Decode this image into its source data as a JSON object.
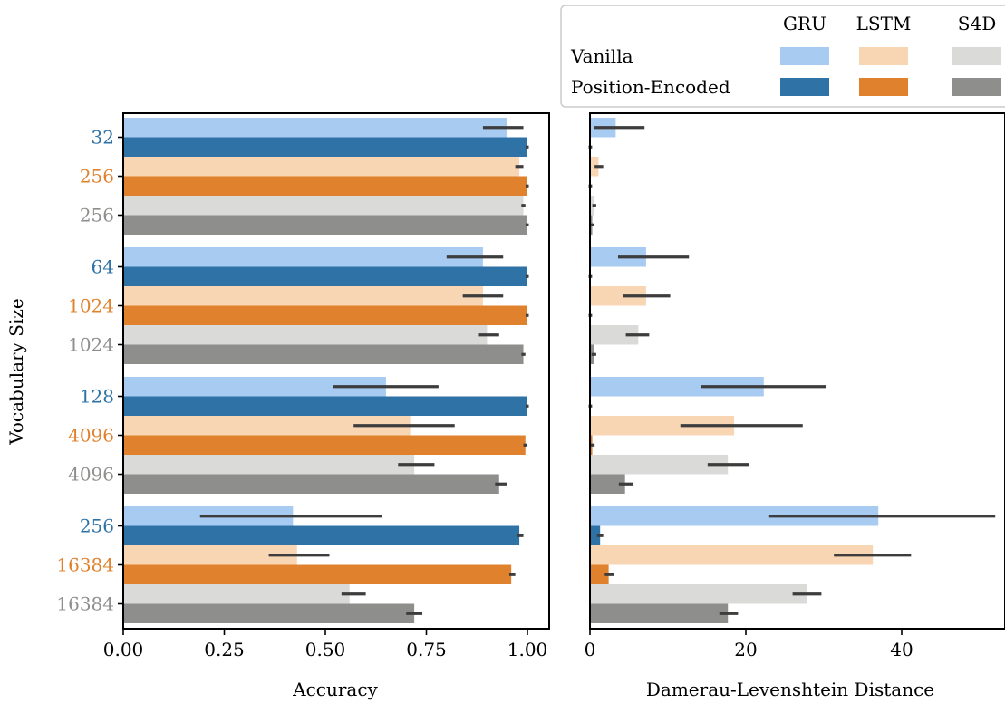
{
  "chart_data": [
    {
      "type": "bar",
      "orientation": "horizontal",
      "xlabel": "Accuracy",
      "ylabel": "Vocabulary Size",
      "xlim": [
        0,
        1.05
      ],
      "xticks": [
        "0.00",
        "0.25",
        "0.50",
        "0.75",
        "1.00"
      ],
      "tick_values": [
        0,
        0.25,
        0.5,
        0.75,
        1.0
      ],
      "bars": [
        {
          "group": 0,
          "row": 0,
          "label": "32",
          "model": "GRU",
          "variant": "Vanilla",
          "value": 0.95,
          "err": [
            0.89,
            0.99
          ]
        },
        {
          "group": 0,
          "row": 0,
          "label": "32",
          "model": "GRU",
          "variant": "Position-Encoded",
          "value": 1.0,
          "err": [
            0.999,
            1.0
          ]
        },
        {
          "group": 0,
          "row": 1,
          "label": "256",
          "model": "LSTM",
          "variant": "Vanilla",
          "value": 0.98,
          "err": [
            0.97,
            0.99
          ]
        },
        {
          "group": 0,
          "row": 1,
          "label": "256",
          "model": "LSTM",
          "variant": "Position-Encoded",
          "value": 1.0,
          "err": [
            0.999,
            1.0
          ]
        },
        {
          "group": 0,
          "row": 2,
          "label": "256",
          "model": "S4D",
          "variant": "Vanilla",
          "value": 0.99,
          "err": [
            0.985,
            0.995
          ]
        },
        {
          "group": 0,
          "row": 2,
          "label": "256",
          "model": "S4D",
          "variant": "Position-Encoded",
          "value": 1.0,
          "err": [
            0.999,
            1.0
          ]
        },
        {
          "group": 1,
          "row": 0,
          "label": "64",
          "model": "GRU",
          "variant": "Vanilla",
          "value": 0.89,
          "err": [
            0.8,
            0.94
          ]
        },
        {
          "group": 1,
          "row": 0,
          "label": "64",
          "model": "GRU",
          "variant": "Position-Encoded",
          "value": 1.0,
          "err": [
            0.999,
            1.0
          ]
        },
        {
          "group": 1,
          "row": 1,
          "label": "1024",
          "model": "LSTM",
          "variant": "Vanilla",
          "value": 0.89,
          "err": [
            0.84,
            0.94
          ]
        },
        {
          "group": 1,
          "row": 1,
          "label": "1024",
          "model": "LSTM",
          "variant": "Position-Encoded",
          "value": 1.0,
          "err": [
            0.999,
            1.0
          ]
        },
        {
          "group": 1,
          "row": 2,
          "label": "1024",
          "model": "S4D",
          "variant": "Vanilla",
          "value": 0.9,
          "err": [
            0.88,
            0.93
          ]
        },
        {
          "group": 1,
          "row": 2,
          "label": "1024",
          "model": "S4D",
          "variant": "Position-Encoded",
          "value": 0.99,
          "err": [
            0.985,
            0.995
          ]
        },
        {
          "group": 2,
          "row": 0,
          "label": "128",
          "model": "GRU",
          "variant": "Vanilla",
          "value": 0.65,
          "err": [
            0.52,
            0.78
          ]
        },
        {
          "group": 2,
          "row": 0,
          "label": "128",
          "model": "GRU",
          "variant": "Position-Encoded",
          "value": 1.0,
          "err": [
            0.999,
            1.0
          ]
        },
        {
          "group": 2,
          "row": 1,
          "label": "4096",
          "model": "LSTM",
          "variant": "Vanilla",
          "value": 0.71,
          "err": [
            0.57,
            0.82
          ]
        },
        {
          "group": 2,
          "row": 1,
          "label": "4096",
          "model": "LSTM",
          "variant": "Position-Encoded",
          "value": 0.995,
          "err": [
            0.99,
            1.0
          ]
        },
        {
          "group": 2,
          "row": 2,
          "label": "4096",
          "model": "S4D",
          "variant": "Vanilla",
          "value": 0.72,
          "err": [
            0.68,
            0.77
          ]
        },
        {
          "group": 2,
          "row": 2,
          "label": "4096",
          "model": "S4D",
          "variant": "Position-Encoded",
          "value": 0.93,
          "err": [
            0.92,
            0.95
          ]
        },
        {
          "group": 3,
          "row": 0,
          "label": "256",
          "model": "GRU",
          "variant": "Vanilla",
          "value": 0.42,
          "err": [
            0.19,
            0.64
          ]
        },
        {
          "group": 3,
          "row": 0,
          "label": "256",
          "model": "GRU",
          "variant": "Position-Encoded",
          "value": 0.98,
          "err": [
            0.975,
            0.99
          ]
        },
        {
          "group": 3,
          "row": 1,
          "label": "16384",
          "model": "LSTM",
          "variant": "Vanilla",
          "value": 0.43,
          "err": [
            0.36,
            0.51
          ]
        },
        {
          "group": 3,
          "row": 1,
          "label": "16384",
          "model": "LSTM",
          "variant": "Position-Encoded",
          "value": 0.96,
          "err": [
            0.955,
            0.97
          ]
        },
        {
          "group": 3,
          "row": 2,
          "label": "16384",
          "model": "S4D",
          "variant": "Vanilla",
          "value": 0.56,
          "err": [
            0.54,
            0.6
          ]
        },
        {
          "group": 3,
          "row": 2,
          "label": "16384",
          "model": "S4D",
          "variant": "Position-Encoded",
          "value": 0.72,
          "err": [
            0.7,
            0.74
          ]
        }
      ]
    },
    {
      "type": "bar",
      "orientation": "horizontal",
      "xlabel": "Damerau-Levenshtein Distance",
      "ylabel": "",
      "xlim": [
        0,
        53.5
      ],
      "xticks": [
        "0",
        "20",
        "40"
      ],
      "tick_values": [
        0,
        20,
        40
      ],
      "bars": [
        {
          "group": 0,
          "row": 0,
          "model": "GRU",
          "variant": "Vanilla",
          "value": 3.3,
          "err": [
            0.5,
            7.0
          ]
        },
        {
          "group": 0,
          "row": 0,
          "model": "GRU",
          "variant": "Position-Encoded",
          "value": 0.0,
          "err": [
            0.0,
            0.1
          ]
        },
        {
          "group": 0,
          "row": 1,
          "model": "LSTM",
          "variant": "Vanilla",
          "value": 1.1,
          "err": [
            0.6,
            1.7
          ]
        },
        {
          "group": 0,
          "row": 1,
          "model": "LSTM",
          "variant": "Position-Encoded",
          "value": 0.0,
          "err": [
            0.0,
            0.1
          ]
        },
        {
          "group": 0,
          "row": 2,
          "model": "S4D",
          "variant": "Vanilla",
          "value": 0.6,
          "err": [
            0.3,
            0.8
          ]
        },
        {
          "group": 0,
          "row": 2,
          "model": "S4D",
          "variant": "Position-Encoded",
          "value": 0.3,
          "err": [
            0.1,
            0.5
          ]
        },
        {
          "group": 1,
          "row": 0,
          "model": "GRU",
          "variant": "Vanilla",
          "value": 7.2,
          "err": [
            3.6,
            12.7
          ]
        },
        {
          "group": 1,
          "row": 0,
          "model": "GRU",
          "variant": "Position-Encoded",
          "value": 0.0,
          "err": [
            0.0,
            0.1
          ]
        },
        {
          "group": 1,
          "row": 1,
          "model": "LSTM",
          "variant": "Vanilla",
          "value": 7.2,
          "err": [
            4.2,
            10.3
          ]
        },
        {
          "group": 1,
          "row": 1,
          "model": "LSTM",
          "variant": "Position-Encoded",
          "value": 0.0,
          "err": [
            0.0,
            0.1
          ]
        },
        {
          "group": 1,
          "row": 2,
          "model": "S4D",
          "variant": "Vanilla",
          "value": 6.2,
          "err": [
            4.6,
            7.6
          ]
        },
        {
          "group": 1,
          "row": 2,
          "model": "S4D",
          "variant": "Position-Encoded",
          "value": 0.5,
          "err": [
            0.2,
            0.8
          ]
        },
        {
          "group": 2,
          "row": 0,
          "model": "GRU",
          "variant": "Vanilla",
          "value": 22.3,
          "err": [
            14.2,
            30.3
          ]
        },
        {
          "group": 2,
          "row": 0,
          "model": "GRU",
          "variant": "Position-Encoded",
          "value": 0.0,
          "err": [
            0.0,
            0.1
          ]
        },
        {
          "group": 2,
          "row": 1,
          "model": "LSTM",
          "variant": "Vanilla",
          "value": 18.5,
          "err": [
            11.6,
            27.3
          ]
        },
        {
          "group": 2,
          "row": 1,
          "model": "LSTM",
          "variant": "Position-Encoded",
          "value": 0.3,
          "err": [
            0.1,
            0.6
          ]
        },
        {
          "group": 2,
          "row": 2,
          "model": "S4D",
          "variant": "Vanilla",
          "value": 17.7,
          "err": [
            15.1,
            20.4
          ]
        },
        {
          "group": 2,
          "row": 2,
          "model": "S4D",
          "variant": "Position-Encoded",
          "value": 4.5,
          "err": [
            3.7,
            5.5
          ]
        },
        {
          "group": 3,
          "row": 0,
          "model": "GRU",
          "variant": "Vanilla",
          "value": 37.0,
          "err": [
            23.0,
            52.0
          ]
        },
        {
          "group": 3,
          "row": 0,
          "model": "GRU",
          "variant": "Position-Encoded",
          "value": 1.3,
          "err": [
            0.9,
            1.7
          ]
        },
        {
          "group": 3,
          "row": 1,
          "model": "LSTM",
          "variant": "Vanilla",
          "value": 36.3,
          "err": [
            31.3,
            41.2
          ]
        },
        {
          "group": 3,
          "row": 1,
          "model": "LSTM",
          "variant": "Position-Encoded",
          "value": 2.4,
          "err": [
            1.9,
            3.1
          ]
        },
        {
          "group": 3,
          "row": 2,
          "model": "S4D",
          "variant": "Vanilla",
          "value": 27.9,
          "err": [
            26.0,
            29.7
          ]
        },
        {
          "group": 3,
          "row": 2,
          "model": "S4D",
          "variant": "Position-Encoded",
          "value": 17.7,
          "err": [
            16.6,
            19.0
          ]
        }
      ]
    }
  ],
  "legend": {
    "columns": [
      "GRU",
      "LSTM",
      "S4D"
    ],
    "rows": [
      "Vanilla",
      "Position-Encoded"
    ],
    "placement": "top-right"
  },
  "colors": {
    "GRU": {
      "Vanilla": "#a8cbf1",
      "Position-Encoded": "#2e72a6"
    },
    "LSTM": {
      "Vanilla": "#f8d6b4",
      "Position-Encoded": "#e0822d"
    },
    "S4D": {
      "Vanilla": "#dadbd8",
      "Position-Encoded": "#8e8e8c"
    },
    "label_colors": [
      "#2e72a6",
      "#e0822d",
      "#8e8e8c"
    ],
    "errorbar": "#3d3d3d",
    "axis": "#000000"
  }
}
